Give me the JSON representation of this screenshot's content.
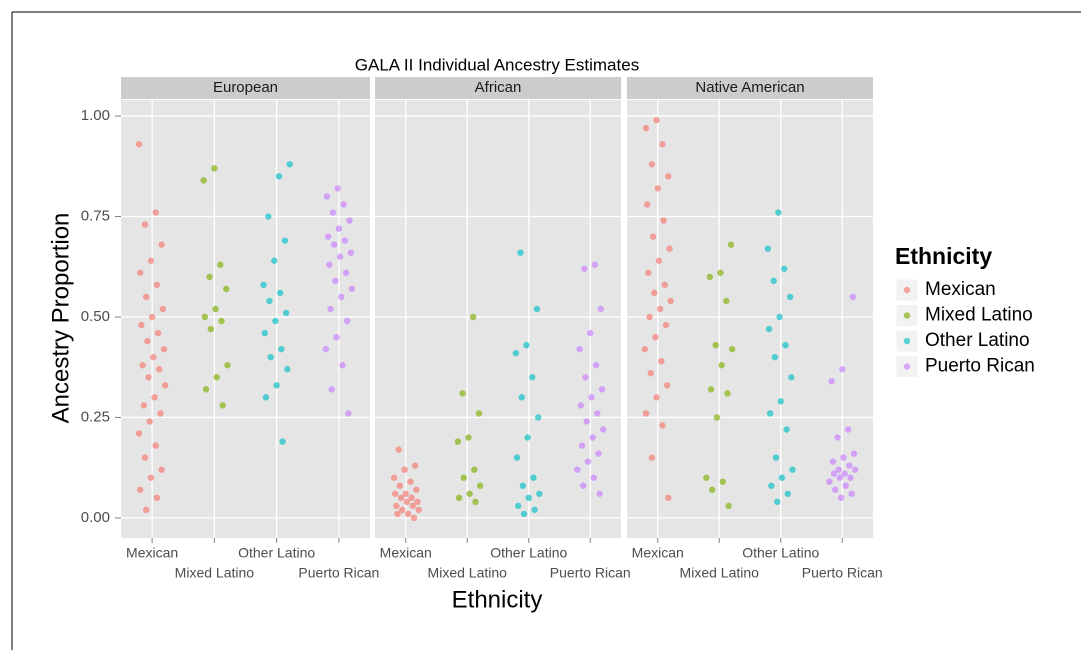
{
  "chart_data": {
    "type": "strip",
    "title": "GALA II Individual Ancestry Estimates",
    "x_label": "Ethnicity",
    "y_label": "Ancestry Proportion",
    "facets": [
      "European",
      "African",
      "Native American"
    ],
    "categories": [
      "Mexican",
      "Mixed Latino",
      "Other Latino",
      "Puerto Rican"
    ],
    "ylim": [
      -0.05,
      1.04
    ],
    "yticks": [
      {
        "value": 0,
        "label": "0.00"
      },
      {
        "value": 0.25,
        "label": "0.25"
      },
      {
        "value": 0.5,
        "label": "0.50"
      },
      {
        "value": 0.75,
        "label": "0.75"
      },
      {
        "value": 1,
        "label": "1.00"
      }
    ],
    "grid": true,
    "legend_title": "Ethnicity",
    "legend_position": "right",
    "series": [
      {
        "name": "Mexican",
        "color": "#F8766D",
        "values": [
          [
            0.93,
            0.76,
            0.73,
            0.68,
            0.64,
            0.61,
            0.58,
            0.55,
            0.52,
            0.5,
            0.48,
            0.46,
            0.44,
            0.42,
            0.4,
            0.38,
            0.37,
            0.35,
            0.33,
            0.3,
            0.28,
            0.26,
            0.24,
            0.21,
            0.18,
            0.15,
            0.12,
            0.1,
            0.07,
            0.05,
            0.02
          ],
          [
            0.17,
            0.13,
            0.12,
            0.1,
            0.09,
            0.08,
            0.07,
            0.06,
            0.06,
            0.05,
            0.05,
            0.04,
            0.04,
            0.03,
            0.03,
            0.02,
            0.02,
            0.01,
            0.01,
            0.0
          ],
          [
            0.99,
            0.97,
            0.93,
            0.88,
            0.85,
            0.82,
            0.78,
            0.74,
            0.7,
            0.67,
            0.64,
            0.61,
            0.58,
            0.56,
            0.54,
            0.52,
            0.5,
            0.48,
            0.45,
            0.42,
            0.39,
            0.36,
            0.33,
            0.3,
            0.26,
            0.23,
            0.15,
            0.05
          ]
        ]
      },
      {
        "name": "Mixed Latino",
        "color": "#7CAE00",
        "values": [
          [
            0.87,
            0.84,
            0.63,
            0.6,
            0.57,
            0.52,
            0.5,
            0.49,
            0.47,
            0.38,
            0.35,
            0.32,
            0.28
          ],
          [
            0.5,
            0.31,
            0.26,
            0.2,
            0.19,
            0.12,
            0.1,
            0.08,
            0.06,
            0.05,
            0.04
          ],
          [
            0.68,
            0.61,
            0.6,
            0.54,
            0.43,
            0.42,
            0.38,
            0.32,
            0.31,
            0.25,
            0.1,
            0.09,
            0.07,
            0.03
          ]
        ]
      },
      {
        "name": "Other Latino",
        "color": "#00BFC4",
        "values": [
          [
            0.88,
            0.85,
            0.75,
            0.69,
            0.64,
            0.58,
            0.56,
            0.54,
            0.51,
            0.49,
            0.46,
            0.42,
            0.4,
            0.37,
            0.33,
            0.3,
            0.19
          ],
          [
            0.66,
            0.52,
            0.43,
            0.41,
            0.35,
            0.3,
            0.25,
            0.2,
            0.15,
            0.1,
            0.08,
            0.06,
            0.05,
            0.03,
            0.02,
            0.01
          ],
          [
            0.76,
            0.67,
            0.62,
            0.59,
            0.55,
            0.5,
            0.47,
            0.43,
            0.4,
            0.35,
            0.29,
            0.26,
            0.22,
            0.15,
            0.12,
            0.1,
            0.08,
            0.06,
            0.04
          ]
        ]
      },
      {
        "name": "Puerto Rican",
        "color": "#C77CFF",
        "values": [
          [
            0.82,
            0.8,
            0.78,
            0.76,
            0.74,
            0.72,
            0.7,
            0.69,
            0.68,
            0.66,
            0.65,
            0.63,
            0.61,
            0.59,
            0.57,
            0.55,
            0.52,
            0.49,
            0.45,
            0.42,
            0.38,
            0.32,
            0.26
          ],
          [
            0.63,
            0.62,
            0.52,
            0.46,
            0.42,
            0.38,
            0.35,
            0.32,
            0.3,
            0.28,
            0.26,
            0.24,
            0.22,
            0.2,
            0.18,
            0.16,
            0.14,
            0.12,
            0.1,
            0.08,
            0.06
          ],
          [
            0.55,
            0.37,
            0.34,
            0.22,
            0.2,
            0.16,
            0.15,
            0.14,
            0.13,
            0.12,
            0.12,
            0.11,
            0.11,
            0.1,
            0.1,
            0.09,
            0.08,
            0.07,
            0.06,
            0.05
          ]
        ]
      }
    ]
  }
}
